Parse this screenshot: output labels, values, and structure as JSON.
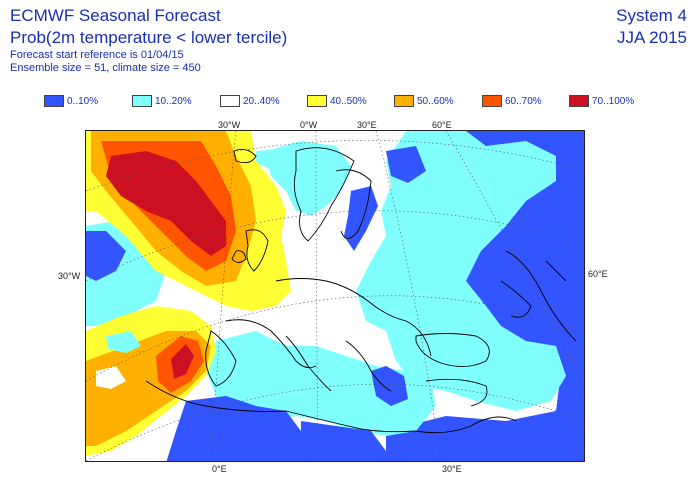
{
  "header": {
    "title": "ECMWF Seasonal Forecast",
    "subtitle": "Prob(2m temperature < lower tercile)",
    "start_reference": "Forecast start reference is 01/04/15",
    "ensemble": "Ensemble size = 51, climate size = 450",
    "system": "System 4",
    "season": "JJA 2015"
  },
  "legend": [
    {
      "label": "0..10%",
      "color": "#3355ff"
    },
    {
      "label": "10..20%",
      "color": "#80ffff"
    },
    {
      "label": "20..40%",
      "color": "#ffffff"
    },
    {
      "label": "40..50%",
      "color": "#ffff33"
    },
    {
      "label": "50..60%",
      "color": "#ffb000"
    },
    {
      "label": "60..70%",
      "color": "#ff5500"
    },
    {
      "label": "70..100%",
      "color": "#cc1022"
    }
  ],
  "map_labels": {
    "top": [
      "30°W",
      "0°W",
      "30°E",
      "60°E"
    ],
    "left": "30°W",
    "right": "60°E",
    "bottom": [
      "0°E",
      "30°E"
    ]
  }
}
